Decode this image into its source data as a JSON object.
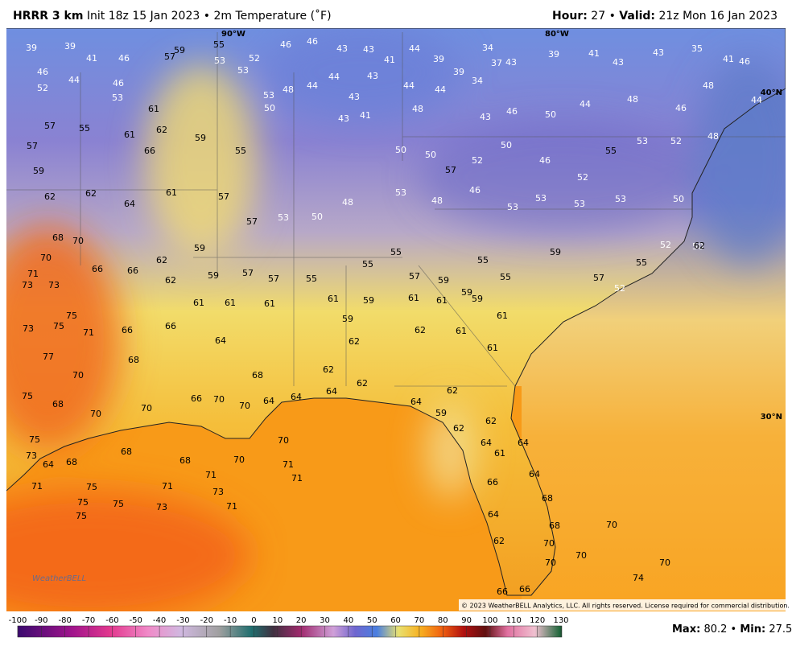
{
  "header": {
    "model": "HRRR 3 km",
    "init": "Init 18z 15 Jan 2023",
    "separator": "•",
    "field": "2m Temperature (˚F)",
    "hour_label": "Hour:",
    "hour": 27,
    "valid_label": "Valid:",
    "valid": "21z Mon 16 Jan 2023"
  },
  "map": {
    "graticule": [
      "90°W",
      "80°W",
      "40°N",
      "30°N"
    ],
    "logo": "WeatherBELL",
    "copyright": "© 2023 WeatherBELL Analytics, LLC. All rights reserved. License required for commercial distribution.",
    "stations": [
      39,
      39,
      41,
      46,
      57,
      59,
      55,
      53,
      52,
      53,
      46,
      46,
      43,
      43,
      41,
      44,
      39,
      39,
      34,
      34,
      37,
      43,
      39,
      41,
      43,
      43,
      35,
      41,
      46,
      46,
      44,
      52,
      46,
      53,
      61,
      57,
      55,
      61,
      62,
      57,
      66,
      59,
      55,
      53,
      48,
      50,
      44,
      44,
      43,
      43,
      44,
      44,
      43,
      46,
      50,
      44,
      48,
      46,
      48,
      44,
      43,
      41,
      48,
      50,
      50,
      57,
      52,
      50,
      46,
      52,
      55,
      53,
      52,
      48,
      59,
      62,
      62,
      64,
      61,
      57,
      57,
      53,
      50,
      48,
      53,
      48,
      46,
      53,
      53,
      53,
      53,
      50,
      50,
      68,
      70,
      70,
      71,
      73,
      73,
      66,
      66,
      62,
      62,
      59,
      59,
      57,
      57,
      55,
      55,
      55,
      57,
      59,
      55,
      55,
      59,
      57,
      55,
      75,
      75,
      71,
      73,
      77,
      70,
      66,
      66,
      68,
      61,
      61,
      61,
      61,
      59,
      59,
      61,
      61,
      59,
      61,
      64,
      68,
      62,
      62,
      62,
      62,
      61,
      61,
      75,
      68,
      70,
      70,
      66,
      70,
      70,
      64,
      64,
      64,
      64,
      62,
      59,
      62,
      62,
      64,
      61,
      64,
      64,
      75,
      73,
      64,
      68,
      68,
      68,
      70,
      70,
      71,
      71,
      71,
      71,
      75,
      71,
      73,
      75,
      75,
      73,
      71,
      75,
      66,
      64,
      62,
      68,
      68,
      70,
      70,
      66,
      66,
      70,
      70,
      70,
      74,
      62,
      52,
      52,
      59
    ]
  },
  "legend": {
    "ticks": [
      -100,
      -90,
      -80,
      -70,
      -60,
      -50,
      -40,
      -30,
      -20,
      -10,
      0,
      10,
      20,
      30,
      40,
      50,
      60,
      70,
      80,
      90,
      100,
      110,
      120,
      130
    ],
    "max_label": "Max:",
    "max": 80.2,
    "separator": "•",
    "min_label": "Min:",
    "min": 27.5
  }
}
